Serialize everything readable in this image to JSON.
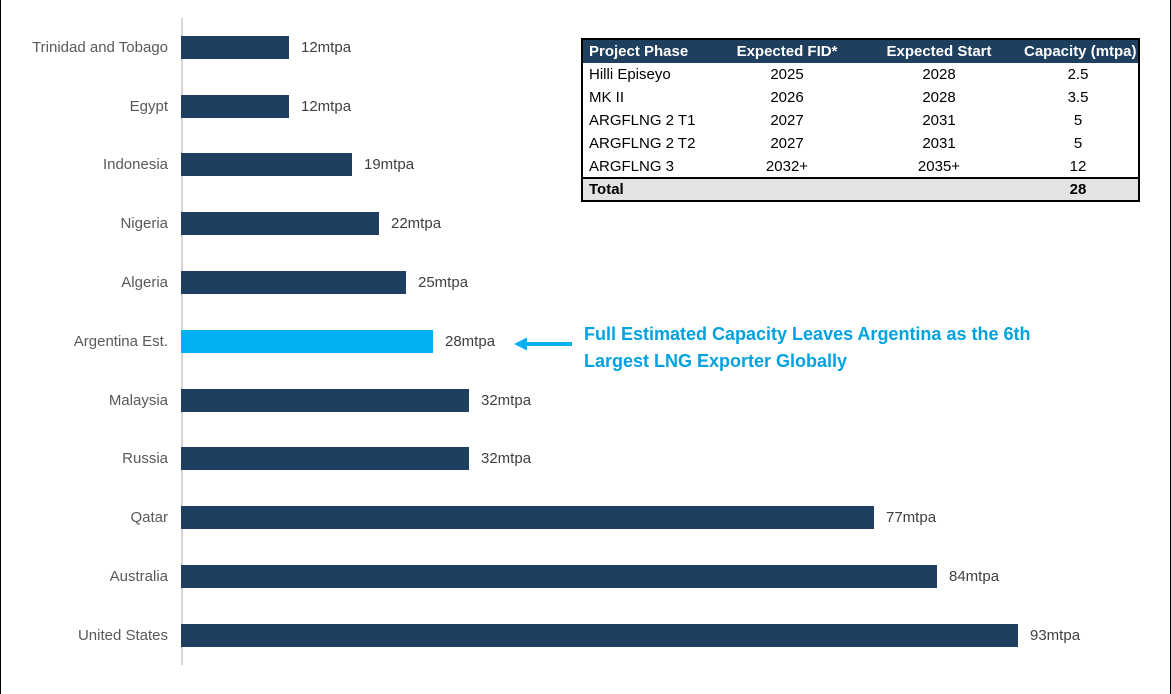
{
  "colors": {
    "bar_navy": "#1e3f5f",
    "bar_highlight_cyan": "#00b0f0",
    "annotation_blue": "#00a2e0",
    "axis_line_gray": "#d6d6d6",
    "category_label_gray": "#595959",
    "value_label_gray": "#3f3f3f",
    "table_header_bg": "#1f3f5f",
    "table_header_text": "#ffffff",
    "table_total_bg": "#e3e3e3"
  },
  "chart_data": {
    "type": "bar",
    "orientation": "horizontal",
    "unit": "mtpa",
    "categories": [
      "Trinidad and Tobago",
      "Egypt",
      "Indonesia",
      "Nigeria",
      "Algeria",
      "Argentina Est.",
      "Malaysia",
      "Russia",
      "Qatar",
      "Australia",
      "United States"
    ],
    "values": [
      12,
      12,
      19,
      22,
      25,
      28,
      32,
      32,
      77,
      84,
      93
    ],
    "value_labels": [
      "12mtpa",
      "12mtpa",
      "19mtpa",
      "22mtpa",
      "25mtpa",
      "28mtpa",
      "32mtpa",
      "32mtpa",
      "77mtpa",
      "84mtpa",
      "93mtpa"
    ],
    "highlight_category": "Argentina Est.",
    "xlim": [
      0,
      100
    ],
    "grid": false,
    "legend": false
  },
  "annotation": {
    "full_text": "Full Estimated Capacity Leaves Argentina as the 6th Largest LNG Exporter Globally",
    "line1": "Full Estimated Capacity Leaves Argentina as the 6th",
    "line2": "Largest LNG Exporter Globally",
    "arrow_icon": "left-arrow-icon"
  },
  "table": {
    "headers": [
      "Project Phase",
      "Expected FID*",
      "Expected Start",
      "Capacity (mtpa)"
    ],
    "rows": [
      [
        "Hilli Episeyo",
        "2025",
        "2028",
        "2.5"
      ],
      [
        "MK II",
        "2026",
        "2028",
        "3.5"
      ],
      [
        "ARGFLNG 2 T1",
        "2027",
        "2031",
        "5"
      ],
      [
        "ARGFLNG 2 T2",
        "2027",
        "2031",
        "5"
      ],
      [
        "ARGFLNG 3",
        "2032+",
        "2035+",
        "12"
      ]
    ],
    "total": [
      "Total",
      "",
      "",
      "28"
    ]
  }
}
